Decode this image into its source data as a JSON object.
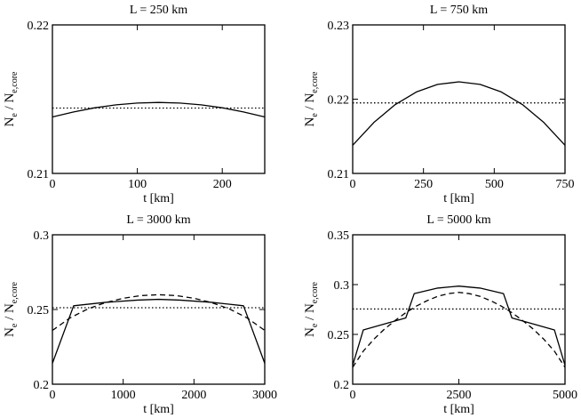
{
  "chart_data": [
    {
      "type": "line",
      "title": "L = 250 km",
      "xlabel": "t [km]",
      "ylabel": {
        "main": "N",
        "sub1": "e",
        "mid": " / N",
        "sub2": "e,core"
      },
      "xlim": [
        0,
        250
      ],
      "ylim": [
        0.21,
        0.22
      ],
      "xticks": [
        0,
        100,
        200
      ],
      "yticks": [
        0.21,
        0.22
      ],
      "ytick_labels": [
        "0.21",
        "0.22"
      ],
      "series": [
        {
          "name": "solid",
          "style": "solid",
          "x": [
            0,
            25,
            50,
            75,
            100,
            125,
            150,
            175,
            200,
            225,
            250
          ],
          "y": [
            0.2138,
            0.21414,
            0.21442,
            0.21462,
            0.21474,
            0.21478,
            0.21474,
            0.21462,
            0.21442,
            0.21414,
            0.2138
          ]
        },
        {
          "name": "dotted",
          "style": "dotted",
          "x": [
            0,
            250
          ],
          "y": [
            0.2144,
            0.2144
          ]
        }
      ]
    },
    {
      "type": "line",
      "title": "L = 750 km",
      "xlabel": "t [km]",
      "ylabel": {
        "main": "N",
        "sub1": "e",
        "mid": " / N",
        "sub2": "e,core"
      },
      "xlim": [
        0,
        750
      ],
      "ylim": [
        0.21,
        0.23
      ],
      "xticks": [
        0,
        250,
        500,
        750
      ],
      "yticks": [
        0.21,
        0.22,
        0.23
      ],
      "ytick_labels": [
        "0.21",
        "0.22",
        "0.23"
      ],
      "series": [
        {
          "name": "solid",
          "style": "solid",
          "x": [
            0,
            75,
            150,
            225,
            300,
            375,
            450,
            525,
            600,
            675,
            750
          ],
          "y": [
            0.2138,
            0.21687,
            0.21926,
            0.22097,
            0.22199,
            0.22233,
            0.22199,
            0.22097,
            0.21926,
            0.21687,
            0.2138
          ]
        },
        {
          "name": "dotted",
          "style": "dotted",
          "x": [
            0,
            750
          ],
          "y": [
            0.2195,
            0.2195
          ]
        }
      ]
    },
    {
      "type": "line",
      "title": "L = 3000 km",
      "xlabel": "t [km]",
      "ylabel": {
        "main": "N",
        "sub1": "e",
        "mid": " / N",
        "sub2": "e,core"
      },
      "xlim": [
        0,
        3000
      ],
      "ylim": [
        0.2,
        0.3
      ],
      "xticks": [
        0,
        1000,
        2000,
        3000
      ],
      "yticks": [
        0.2,
        0.25,
        0.3
      ],
      "ytick_labels": [
        "0.2",
        "0.25",
        "0.3"
      ],
      "series": [
        {
          "name": "solid",
          "style": "solid",
          "x": [
            0,
            300,
            750,
            1200,
            1500,
            1800,
            2250,
            2700,
            3000
          ],
          "y": [
            0.214,
            0.2525,
            0.2548,
            0.2563,
            0.2568,
            0.2563,
            0.2548,
            0.2525,
            0.214
          ]
        },
        {
          "name": "dashed",
          "style": "dashed",
          "x": [
            0,
            250,
            500,
            750,
            1000,
            1250,
            1500,
            1750,
            2000,
            2250,
            2500,
            2750,
            3000
          ],
          "y": [
            0.236,
            0.2444,
            0.2504,
            0.2546,
            0.2575,
            0.2593,
            0.2599,
            0.2593,
            0.2575,
            0.2546,
            0.2504,
            0.2444,
            0.236
          ]
        },
        {
          "name": "dotted",
          "style": "dotted",
          "x": [
            0,
            3000
          ],
          "y": [
            0.2512,
            0.2512
          ]
        }
      ]
    },
    {
      "type": "line",
      "title": "L = 5000 km",
      "xlabel": "t [km]",
      "ylabel": {
        "main": "N",
        "sub1": "e",
        "mid": " / N",
        "sub2": "e,core"
      },
      "xlim": [
        0,
        5000
      ],
      "ylim": [
        0.2,
        0.35
      ],
      "xticks": [
        0,
        2500,
        5000
      ],
      "yticks": [
        0.2,
        0.25,
        0.3,
        0.35
      ],
      "ytick_labels": [
        "0.2",
        "0.25",
        "0.3",
        "0.35"
      ],
      "series": [
        {
          "name": "solid",
          "style": "solid",
          "x": [
            0,
            250,
            1250,
            1450,
            2000,
            2500,
            3000,
            3550,
            3750,
            4750,
            5000
          ],
          "y": [
            0.219,
            0.2545,
            0.2665,
            0.291,
            0.2965,
            0.2985,
            0.2965,
            0.291,
            0.2665,
            0.2545,
            0.219
          ]
        },
        {
          "name": "dashed",
          "style": "dashed",
          "x": [
            0,
            250,
            500,
            750,
            1000,
            1250,
            1500,
            1750,
            2000,
            2250,
            2500,
            2750,
            3000,
            3250,
            3500,
            3750,
            4000,
            4250,
            4500,
            4750,
            5000
          ],
          "y": [
            0.217,
            0.2332,
            0.2452,
            0.2554,
            0.264,
            0.2718,
            0.2784,
            0.2838,
            0.2882,
            0.2909,
            0.2922,
            0.2909,
            0.2882,
            0.2838,
            0.2784,
            0.2718,
            0.264,
            0.2554,
            0.2452,
            0.2332,
            0.217
          ]
        },
        {
          "name": "dotted",
          "style": "dotted",
          "x": [
            0,
            5000
          ],
          "y": [
            0.2755,
            0.2755
          ]
        }
      ]
    }
  ]
}
